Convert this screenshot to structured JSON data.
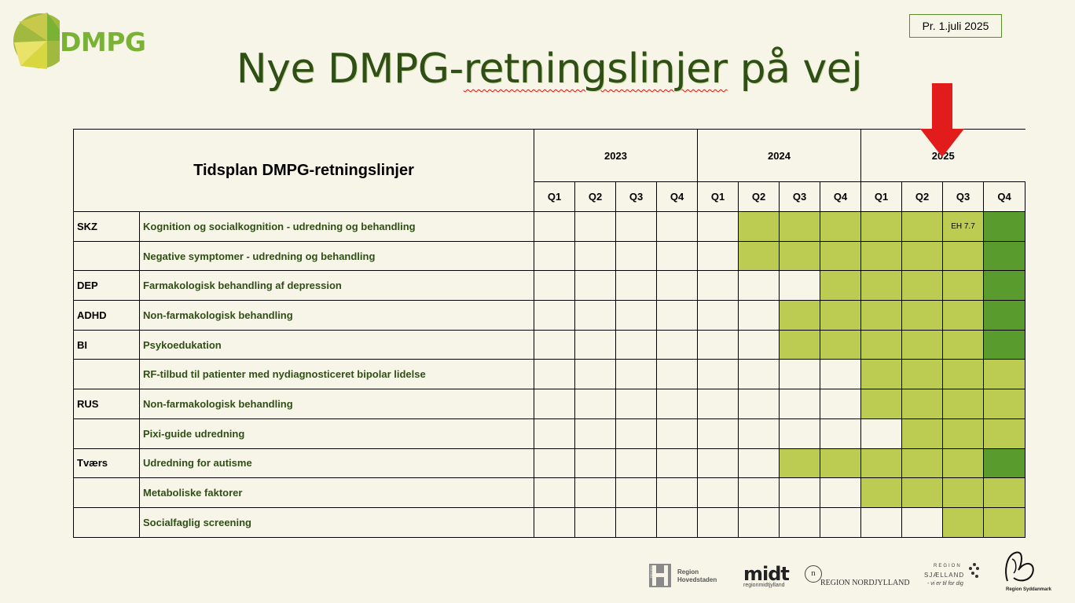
{
  "logo": {
    "text": "DMPG",
    "colors": {
      "green": "#79b234",
      "yellow": "#d8d740",
      "olive": "#a2b940"
    }
  },
  "date_label": "Pr. 1.juli 2025",
  "title_parts": {
    "before": "Nye DMPG-",
    "misspelled": "retningslinjer",
    "after": " på vej"
  },
  "table": {
    "header_title": "Tidsplan DMPG-retningslinjer",
    "years": [
      "2023",
      "2024",
      "2025"
    ],
    "quarters": [
      "Q1",
      "Q2",
      "Q3",
      "Q4",
      "Q1",
      "Q2",
      "Q3",
      "Q4",
      "Q1",
      "Q2",
      "Q3",
      "Q4"
    ],
    "colors": {
      "light": "#bccc52",
      "dark": "#5a9b2e"
    },
    "rows": [
      {
        "abbr": "SKZ",
        "label": "Kognition og socialkognition - udredning og behandling",
        "cells": "00000LLLLLLD",
        "note": "EH 7.7",
        "note_index": 10
      },
      {
        "abbr": "",
        "label": "Negative symptomer - udredning og behandling",
        "cells": "00000LLLLLLD"
      },
      {
        "abbr": "DEP",
        "label": "Farmakologisk behandling af depression",
        "cells": "0000000LLLLD"
      },
      {
        "abbr": "ADHD",
        "label": "Non-farmakologisk behandling",
        "cells": "000000LLLLLD"
      },
      {
        "abbr": "BI",
        "label": "Psykoedukation",
        "cells": "000000LLLLLD"
      },
      {
        "abbr": "",
        "label": "RF-tilbud til patienter med nydiagnosticeret bipolar lidelse",
        "cells": "00000000LLLL"
      },
      {
        "abbr": "RUS",
        "label": "Non-farmakologisk behandling",
        "cells": "00000000LLLL"
      },
      {
        "abbr": "",
        "label": "Pixi-guide udredning",
        "cells": "000000000LLL"
      },
      {
        "abbr": "Tværs",
        "label": "Udredning for autisme",
        "cells": "000000LLLLLD"
      },
      {
        "abbr": "",
        "label": "Metaboliske faktorer",
        "cells": "00000000LLLL"
      },
      {
        "abbr": "",
        "label": "Socialfaglig screening",
        "cells": "0000000000LL"
      }
    ]
  },
  "arrow": {
    "icon": "red-down-arrow-icon",
    "color": "#e21b1b"
  },
  "footer_logos": {
    "hovedstaden": {
      "icon": "region-hovedstaden-logo",
      "line1": "Region",
      "line2": "Hovedstaden",
      "badge": "REGION"
    },
    "midt": {
      "icon": "midt-logo",
      "name": "midt",
      "sub": "regionmidtjylland"
    },
    "nordjylland": {
      "icon": "region-nordjylland-logo",
      "name": "REGION NORDJYLLAND",
      "mark": "n"
    },
    "sjaelland": {
      "icon": "region-sjaelland-logo",
      "line1": "REGION",
      "line2": "SJÆLLAND",
      "tagline": "- vi er til for dig"
    },
    "syddanmark": {
      "icon": "region-syddanmark-logo",
      "name": "Region Syddanmark"
    }
  }
}
